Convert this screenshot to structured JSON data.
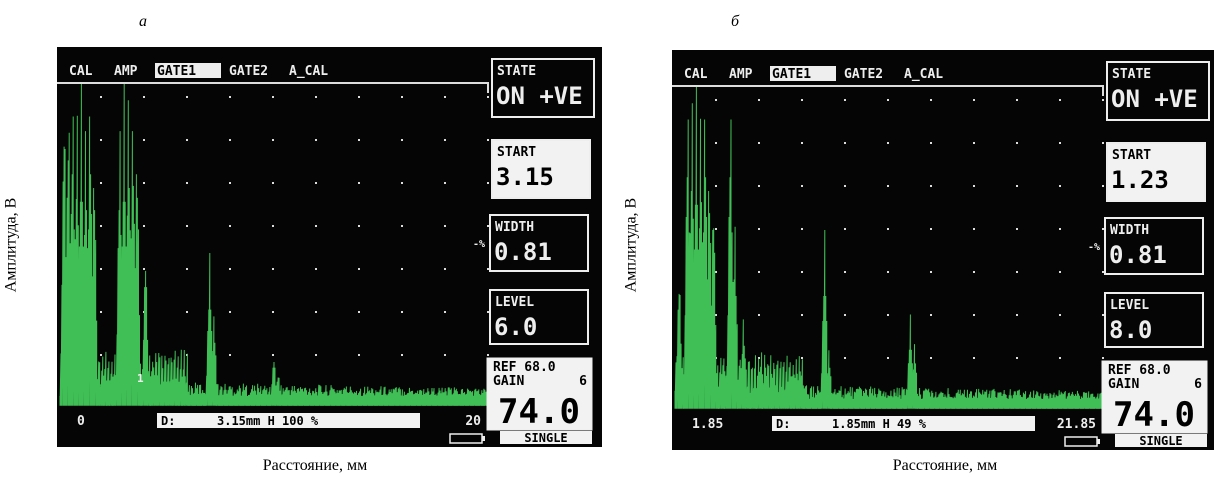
{
  "panels": [
    {
      "label": "а",
      "y_axis_label": "Амплитуда, В",
      "x_axis_label": "Расстояние, мм",
      "menu": [
        "CAL",
        "AMP",
        "GATE1",
        "GATE2",
        "A_CAL"
      ],
      "state_title": "STATE",
      "state_value": "ON +VE",
      "start_title": "START",
      "start_value": "3.15",
      "width_title": "WIDTH",
      "width_value": "0.81",
      "level_title": "LEVEL",
      "level_value": "6.0",
      "ref": "REF 68.0",
      "gain_label": "GAIN",
      "gain_value": "6",
      "big_value": "74.0",
      "mode": "SINGLE",
      "x_start": "0",
      "x_end": "20",
      "status_d": "D:",
      "status_value": "3.15mm  H 100 %",
      "side_marker": "-%",
      "gate_marker": "1"
    },
    {
      "label": "б",
      "y_axis_label": "Амплитуда, В",
      "x_axis_label": "Расстояние, мм",
      "menu": [
        "CAL",
        "AMP",
        "GATE1",
        "GATE2",
        "A_CAL"
      ],
      "state_title": "STATE",
      "state_value": "ON +VE",
      "start_title": "START",
      "start_value": "1.23",
      "width_title": "WIDTH",
      "width_value": "0.81",
      "level_title": "LEVEL",
      "level_value": "8.0",
      "ref": "REF 68.0",
      "gain_label": "GAIN",
      "gain_value": "6",
      "big_value": "74.0",
      "mode": "SINGLE",
      "x_start": "1.85",
      "x_end": "21.85",
      "status_d": "D:",
      "status_value": "1.85mm  H  49 %",
      "side_marker": "-%"
    }
  ]
}
